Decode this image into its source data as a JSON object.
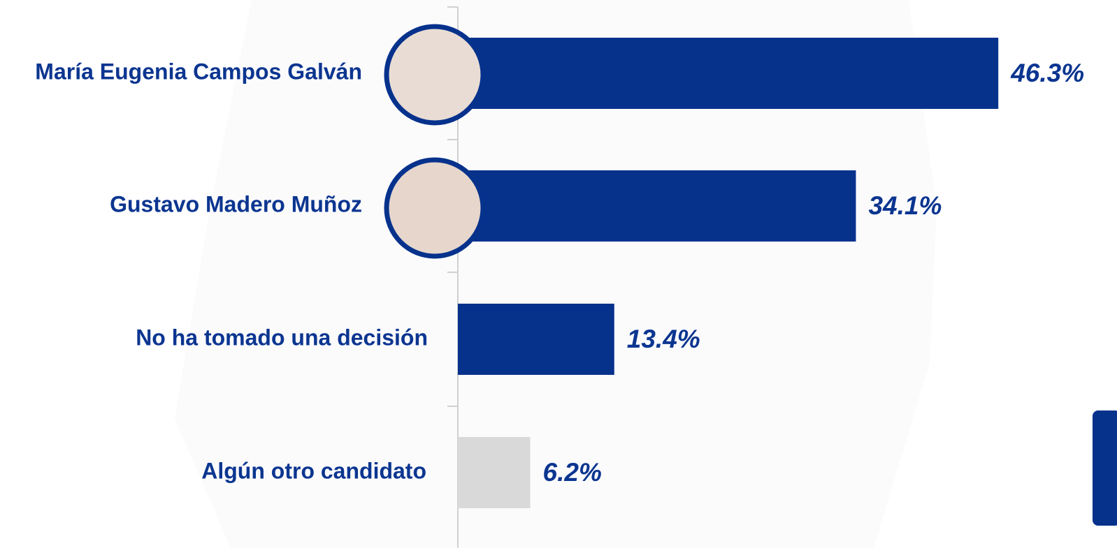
{
  "chart_data": {
    "type": "bar",
    "orientation": "horizontal",
    "categories": [
      "María Eugenia Campos Galván",
      "Gustavo Madero Muñoz",
      "No ha tomado una decisión",
      "Algún otro candidato"
    ],
    "values": [
      46.3,
      34.1,
      13.4,
      6.2
    ],
    "value_labels": [
      "46.3%",
      "34.1%",
      "13.4%",
      "6.2%"
    ],
    "colors": [
      "#06328c",
      "#06328c",
      "#06328c",
      "#d9d9d9"
    ],
    "xlim": [
      0,
      50
    ]
  }
}
